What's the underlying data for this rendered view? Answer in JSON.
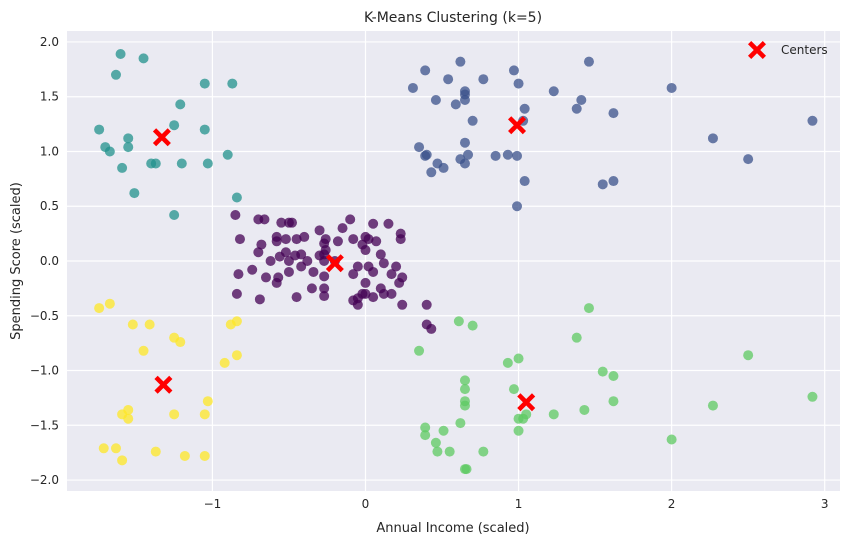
{
  "chart_data": {
    "type": "scatter",
    "title": "K-Means Clustering (k=5)",
    "xlabel": "Annual Income (scaled)",
    "ylabel": "Spending Score (scaled)",
    "xlim": [
      -1.95,
      3.1
    ],
    "ylim": [
      -2.1,
      2.1
    ],
    "xticks": [
      -1,
      0,
      1,
      2,
      3
    ],
    "xtick_labels": [
      "−1",
      "0",
      "1",
      "2",
      "3"
    ],
    "yticks": [
      -2.0,
      -1.5,
      -1.0,
      -0.5,
      0.0,
      0.5,
      1.0,
      1.5,
      2.0
    ],
    "ytick_labels": [
      "−2.0",
      "−1.5",
      "−1.0",
      "−0.5",
      "0.0",
      "0.5",
      "1.0",
      "1.5",
      "2.0"
    ],
    "grid": true,
    "background": "#eaeaf2",
    "legend": {
      "position": "top-right",
      "entries": [
        {
          "label": "Centers",
          "color": "#ff0000",
          "marker": "X"
        }
      ]
    },
    "series": [
      {
        "cluster": 0,
        "color": "#440154",
        "points": [
          [
            -0.85,
            0.42
          ],
          [
            -0.7,
            0.38
          ],
          [
            -0.66,
            0.38
          ],
          [
            -0.55,
            0.35
          ],
          [
            -0.5,
            0.35
          ],
          [
            -0.48,
            0.35
          ],
          [
            -0.82,
            0.2
          ],
          [
            -0.68,
            0.15
          ],
          [
            -0.58,
            0.22
          ],
          [
            -0.58,
            0.18
          ],
          [
            -0.52,
            0.2
          ],
          [
            -0.45,
            0.2
          ],
          [
            -0.4,
            0.22
          ],
          [
            -0.3,
            0.28
          ],
          [
            -0.26,
            0.2
          ],
          [
            -0.7,
            0.08
          ],
          [
            -0.62,
            0.0
          ],
          [
            -0.56,
            0.04
          ],
          [
            -0.52,
            0.08
          ],
          [
            -0.5,
            0.0
          ],
          [
            -0.46,
            0.05
          ],
          [
            -0.42,
            0.06
          ],
          [
            -0.38,
            0.0
          ],
          [
            -0.3,
            0.05
          ],
          [
            -0.26,
            0.1
          ],
          [
            -0.2,
            0.0
          ],
          [
            -0.83,
            -0.12
          ],
          [
            -0.74,
            -0.08
          ],
          [
            -0.65,
            -0.15
          ],
          [
            -0.57,
            -0.15
          ],
          [
            -0.5,
            -0.1
          ],
          [
            -0.42,
            -0.05
          ],
          [
            -0.34,
            -0.1
          ],
          [
            -0.27,
            -0.14
          ],
          [
            -0.84,
            -0.3
          ],
          [
            -0.69,
            -0.35
          ],
          [
            -0.58,
            -0.2
          ],
          [
            -0.45,
            -0.33
          ],
          [
            -0.35,
            -0.25
          ],
          [
            -0.27,
            -0.25
          ],
          [
            -0.27,
            -0.32
          ],
          [
            -0.27,
            0.0
          ],
          [
            -0.27,
            0.06
          ],
          [
            -0.27,
            0.16
          ],
          [
            -0.18,
            0.18
          ],
          [
            -0.15,
            0.3
          ],
          [
            -0.1,
            0.38
          ],
          [
            -0.08,
            0.2
          ],
          [
            -0.05,
            -0.05
          ],
          [
            -0.02,
            0.15
          ],
          [
            0.02,
            0.2
          ],
          [
            0.05,
            0.34
          ],
          [
            0.07,
            0.18
          ],
          [
            -0.08,
            -0.12
          ],
          [
            -0.05,
            -0.34
          ],
          [
            -0.02,
            -0.3
          ],
          [
            0.02,
            -0.05
          ],
          [
            0.05,
            -0.1
          ],
          [
            0.1,
            0.06
          ],
          [
            0.12,
            -0.02
          ],
          [
            0.15,
            0.34
          ],
          [
            0.17,
            -0.12
          ],
          [
            0.2,
            -0.05
          ],
          [
            0.23,
            0.25
          ],
          [
            0.23,
            0.2
          ],
          [
            0.24,
            -0.15
          ],
          [
            0.0,
            0.22
          ],
          [
            0.0,
            0.1
          ],
          [
            0.0,
            -0.2
          ],
          [
            0.0,
            -0.3
          ],
          [
            0.05,
            -0.33
          ],
          [
            0.1,
            -0.25
          ],
          [
            0.12,
            -0.3
          ],
          [
            0.17,
            -0.3
          ],
          [
            0.22,
            -0.2
          ],
          [
            0.24,
            -0.4
          ],
          [
            -0.08,
            -0.36
          ],
          [
            -0.05,
            -0.4
          ],
          [
            0.4,
            -0.4
          ],
          [
            0.4,
            -0.58
          ],
          [
            0.43,
            -0.62
          ]
        ]
      },
      {
        "cluster": 1,
        "color": "#3b528b",
        "points": [
          [
            0.31,
            1.58
          ],
          [
            0.39,
            1.74
          ],
          [
            0.46,
            1.47
          ],
          [
            0.54,
            1.66
          ],
          [
            0.59,
            1.43
          ],
          [
            0.62,
            1.82
          ],
          [
            0.65,
            1.47
          ],
          [
            0.65,
            1.52
          ],
          [
            0.65,
            1.55
          ],
          [
            0.7,
            1.28
          ],
          [
            0.77,
            1.66
          ],
          [
            0.97,
            1.74
          ],
          [
            1.0,
            1.62
          ],
          [
            1.03,
            1.28
          ],
          [
            1.04,
            1.39
          ],
          [
            1.23,
            1.55
          ],
          [
            1.38,
            1.39
          ],
          [
            1.41,
            1.47
          ],
          [
            1.46,
            1.82
          ],
          [
            1.62,
            1.35
          ],
          [
            2.0,
            1.58
          ],
          [
            2.27,
            1.12
          ],
          [
            2.5,
            0.93
          ],
          [
            2.92,
            1.28
          ],
          [
            0.35,
            1.04
          ],
          [
            0.39,
            0.96
          ],
          [
            0.4,
            0.97
          ],
          [
            0.43,
            0.81
          ],
          [
            0.47,
            0.89
          ],
          [
            0.51,
            0.85
          ],
          [
            0.62,
            0.93
          ],
          [
            0.65,
            0.89
          ],
          [
            0.65,
            1.08
          ],
          [
            0.67,
            0.97
          ],
          [
            0.85,
            0.96
          ],
          [
            0.93,
            0.97
          ],
          [
            0.99,
            0.96
          ],
          [
            1.04,
            0.73
          ],
          [
            0.99,
            0.5
          ],
          [
            1.55,
            0.7
          ],
          [
            1.62,
            0.73
          ]
        ]
      },
      {
        "cluster": 2,
        "color": "#21918c",
        "points": [
          [
            -1.6,
            1.89
          ],
          [
            -1.45,
            1.85
          ],
          [
            -1.55,
            1.12
          ],
          [
            -1.63,
            1.7
          ],
          [
            -1.25,
            1.24
          ],
          [
            -1.21,
            1.43
          ],
          [
            -1.05,
            1.62
          ],
          [
            -0.87,
            1.62
          ],
          [
            -1.74,
            1.2
          ],
          [
            -1.7,
            1.04
          ],
          [
            -1.67,
            1.0
          ],
          [
            -1.59,
            0.85
          ],
          [
            -1.55,
            1.04
          ],
          [
            -1.4,
            0.89
          ],
          [
            -1.37,
            0.89
          ],
          [
            -1.2,
            0.89
          ],
          [
            -1.05,
            1.2
          ],
          [
            -1.03,
            0.89
          ],
          [
            -0.9,
            0.97
          ],
          [
            -0.84,
            0.58
          ],
          [
            -1.51,
            0.62
          ],
          [
            -1.25,
            0.42
          ]
        ]
      },
      {
        "cluster": 3,
        "color": "#5ec962",
        "points": [
          [
            0.61,
            -0.55
          ],
          [
            0.35,
            -0.82
          ],
          [
            0.7,
            -0.59
          ],
          [
            0.65,
            -1.09
          ],
          [
            0.65,
            -1.17
          ],
          [
            0.65,
            -1.28
          ],
          [
            0.65,
            -1.32
          ],
          [
            0.93,
            -0.93
          ],
          [
            0.97,
            -1.17
          ],
          [
            1.0,
            -0.89
          ],
          [
            1.0,
            -1.44
          ],
          [
            1.0,
            -1.55
          ],
          [
            1.03,
            -1.44
          ],
          [
            1.05,
            -1.4
          ],
          [
            1.23,
            -1.4
          ],
          [
            1.38,
            -0.7
          ],
          [
            1.46,
            -0.43
          ],
          [
            1.43,
            -1.36
          ],
          [
            1.55,
            -1.01
          ],
          [
            1.62,
            -1.05
          ],
          [
            1.62,
            -1.28
          ],
          [
            2.27,
            -1.32
          ],
          [
            2.5,
            -0.86
          ],
          [
            2.92,
            -1.24
          ],
          [
            2.0,
            -1.63
          ],
          [
            0.39,
            -1.52
          ],
          [
            0.39,
            -1.59
          ],
          [
            0.46,
            -1.66
          ],
          [
            0.47,
            -1.74
          ],
          [
            0.51,
            -1.55
          ],
          [
            0.55,
            -1.74
          ],
          [
            0.62,
            -1.48
          ],
          [
            0.65,
            -1.9
          ],
          [
            0.66,
            -1.9
          ],
          [
            0.77,
            -1.74
          ]
        ]
      },
      {
        "cluster": 4,
        "color": "#fde725",
        "points": [
          [
            -1.74,
            -0.43
          ],
          [
            -1.67,
            -0.39
          ],
          [
            -1.52,
            -0.58
          ],
          [
            -1.41,
            -0.58
          ],
          [
            -1.45,
            -0.82
          ],
          [
            -1.25,
            -0.7
          ],
          [
            -1.21,
            -0.74
          ],
          [
            -0.88,
            -0.58
          ],
          [
            -0.84,
            -0.55
          ],
          [
            -0.84,
            -0.86
          ],
          [
            -0.92,
            -0.93
          ],
          [
            -1.71,
            -1.71
          ],
          [
            -1.63,
            -1.71
          ],
          [
            -1.59,
            -1.4
          ],
          [
            -1.55,
            -1.36
          ],
          [
            -1.55,
            -1.44
          ],
          [
            -1.59,
            -1.82
          ],
          [
            -1.37,
            -1.74
          ],
          [
            -1.25,
            -1.4
          ],
          [
            -1.18,
            -1.78
          ],
          [
            -1.05,
            -1.4
          ],
          [
            -1.03,
            -1.28
          ],
          [
            -1.05,
            -1.78
          ]
        ]
      }
    ],
    "centers": {
      "name": "Centers",
      "color": "#ff0000",
      "points": [
        [
          -1.33,
          1.13
        ],
        [
          0.99,
          1.24
        ],
        [
          -0.2,
          -0.02
        ],
        [
          1.05,
          -1.29
        ],
        [
          -1.32,
          -1.13
        ]
      ]
    }
  }
}
